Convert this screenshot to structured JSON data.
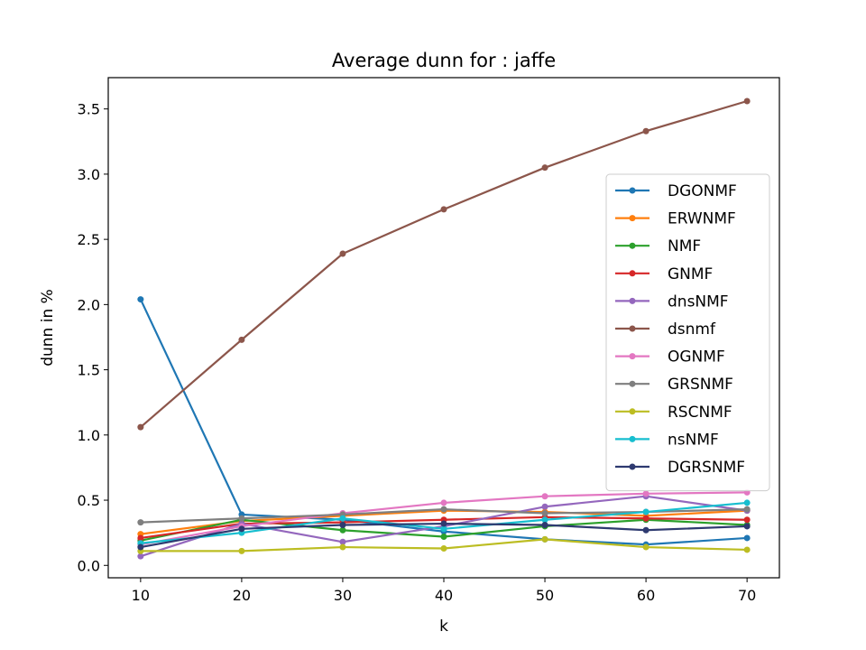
{
  "chart_data": {
    "type": "line",
    "title": "Average dunn for : jaffe",
    "xlabel": "k",
    "ylabel": "dunn in %",
    "x": [
      10,
      20,
      30,
      40,
      50,
      60,
      70
    ],
    "xticks": [
      10,
      20,
      30,
      40,
      50,
      60,
      70
    ],
    "yticks": [
      0.0,
      0.5,
      1.0,
      1.5,
      2.0,
      2.5,
      3.0,
      3.5
    ],
    "ytick_labels": [
      "0.0",
      "0.5",
      "1.0",
      "1.5",
      "2.0",
      "2.5",
      "3.0",
      "3.5"
    ],
    "xlim": [
      6.8,
      73.2
    ],
    "ylim": [
      -0.095,
      3.74
    ],
    "grid": false,
    "legend_position": "right",
    "series": [
      {
        "name": "DGONMF",
        "color": "#1f77b4",
        "values": [
          2.04,
          0.39,
          0.35,
          0.26,
          0.2,
          0.16,
          0.21
        ]
      },
      {
        "name": "ERWNMF",
        "color": "#ff7f0e",
        "values": [
          0.24,
          0.34,
          0.38,
          0.42,
          0.41,
          0.38,
          0.42
        ]
      },
      {
        "name": "NMF",
        "color": "#2ca02c",
        "values": [
          0.19,
          0.35,
          0.27,
          0.22,
          0.3,
          0.35,
          0.31
        ]
      },
      {
        "name": "GNMF",
        "color": "#d62728",
        "values": [
          0.21,
          0.32,
          0.33,
          0.35,
          0.37,
          0.36,
          0.35
        ]
      },
      {
        "name": "dnsNMF",
        "color": "#9467bd",
        "values": [
          0.07,
          0.32,
          0.18,
          0.3,
          0.45,
          0.53,
          0.42
        ]
      },
      {
        "name": "dsnmf",
        "color": "#8c564b",
        "values": [
          1.06,
          1.73,
          2.39,
          2.73,
          3.05,
          3.33,
          3.56
        ]
      },
      {
        "name": "OGNMF",
        "color": "#e377c2",
        "values": [
          0.16,
          0.3,
          0.4,
          0.48,
          0.53,
          0.55,
          0.56
        ]
      },
      {
        "name": "GRSNMF",
        "color": "#7f7f7f",
        "values": [
          0.33,
          0.36,
          0.39,
          0.43,
          0.4,
          0.41,
          0.43
        ]
      },
      {
        "name": "RSCNMF",
        "color": "#bcbd22",
        "values": [
          0.11,
          0.11,
          0.14,
          0.13,
          0.2,
          0.14,
          0.12
        ]
      },
      {
        "name": "nsNMF",
        "color": "#17becf",
        "values": [
          0.17,
          0.25,
          0.36,
          0.28,
          0.35,
          0.41,
          0.48
        ]
      },
      {
        "name": "DGRSNMF",
        "color": "#2e3a70",
        "values": [
          0.14,
          0.28,
          0.31,
          0.32,
          0.31,
          0.27,
          0.3
        ]
      }
    ]
  }
}
